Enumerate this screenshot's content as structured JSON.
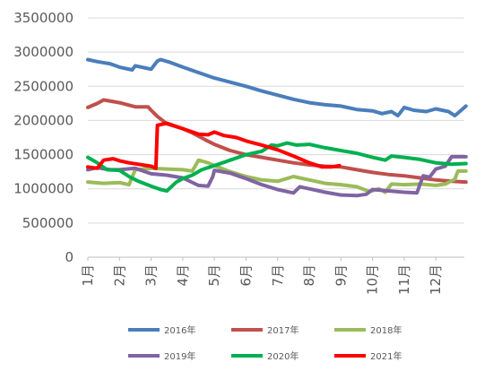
{
  "chart_data": {
    "type": "line",
    "title": "",
    "xlabel": "",
    "ylabel": "",
    "ylim": [
      0,
      3500000
    ],
    "yticks": [
      0,
      500000,
      1000000,
      1500000,
      2000000,
      2500000,
      3000000,
      3500000
    ],
    "ytick_labels": [
      "0",
      "500000",
      "1000000",
      "1500000",
      "2000000",
      "2500000",
      "3000000",
      "3500000"
    ],
    "xlim": [
      1,
      12.9
    ],
    "xtick_labels": [
      "1月",
      "2月",
      "3月",
      "4月",
      "5月",
      "6月",
      "7月",
      "8月",
      "9月",
      "10月",
      "11月",
      "12月"
    ],
    "grid": "horizontal",
    "legend_position": "bottom",
    "series": [
      {
        "name": "2016年",
        "color": "#4a7ebb",
        "points": [
          [
            1.0,
            2890000
          ],
          [
            1.3,
            2860000
          ],
          [
            1.7,
            2830000
          ],
          [
            2.0,
            2780000
          ],
          [
            2.4,
            2740000
          ],
          [
            2.5,
            2800000
          ],
          [
            2.9,
            2760000
          ],
          [
            3.0,
            2750000
          ],
          [
            3.2,
            2870000
          ],
          [
            3.3,
            2890000
          ],
          [
            3.6,
            2850000
          ],
          [
            4.0,
            2780000
          ],
          [
            4.5,
            2700000
          ],
          [
            5.0,
            2620000
          ],
          [
            5.5,
            2560000
          ],
          [
            6.0,
            2500000
          ],
          [
            6.5,
            2430000
          ],
          [
            7.0,
            2370000
          ],
          [
            7.5,
            2310000
          ],
          [
            8.0,
            2260000
          ],
          [
            8.5,
            2230000
          ],
          [
            9.0,
            2210000
          ],
          [
            9.5,
            2160000
          ],
          [
            10.0,
            2140000
          ],
          [
            10.3,
            2100000
          ],
          [
            10.6,
            2130000
          ],
          [
            10.8,
            2070000
          ],
          [
            11.0,
            2190000
          ],
          [
            11.3,
            2150000
          ],
          [
            11.7,
            2130000
          ],
          [
            12.0,
            2170000
          ],
          [
            12.4,
            2130000
          ],
          [
            12.6,
            2070000
          ],
          [
            12.8,
            2150000
          ],
          [
            12.95,
            2210000
          ]
        ]
      },
      {
        "name": "2017年",
        "color": "#c0504d",
        "points": [
          [
            1.0,
            2190000
          ],
          [
            1.3,
            2250000
          ],
          [
            1.5,
            2300000
          ],
          [
            2.0,
            2260000
          ],
          [
            2.5,
            2200000
          ],
          [
            2.9,
            2200000
          ],
          [
            3.0,
            2150000
          ],
          [
            3.2,
            2060000
          ],
          [
            3.5,
            1950000
          ],
          [
            4.0,
            1880000
          ],
          [
            4.3,
            1820000
          ],
          [
            4.7,
            1720000
          ],
          [
            5.0,
            1650000
          ],
          [
            5.5,
            1560000
          ],
          [
            6.0,
            1500000
          ],
          [
            6.5,
            1460000
          ],
          [
            7.0,
            1420000
          ],
          [
            7.5,
            1380000
          ],
          [
            8.0,
            1350000
          ],
          [
            8.5,
            1330000
          ],
          [
            9.0,
            1320000
          ],
          [
            9.5,
            1280000
          ],
          [
            10.0,
            1240000
          ],
          [
            10.5,
            1210000
          ],
          [
            11.0,
            1190000
          ],
          [
            11.5,
            1160000
          ],
          [
            12.0,
            1130000
          ],
          [
            12.5,
            1110000
          ],
          [
            12.95,
            1100000
          ]
        ]
      },
      {
        "name": "2018年",
        "color": "#9bbb59",
        "points": [
          [
            1.0,
            1100000
          ],
          [
            1.5,
            1080000
          ],
          [
            2.0,
            1090000
          ],
          [
            2.3,
            1060000
          ],
          [
            2.5,
            1280000
          ],
          [
            3.0,
            1300000
          ],
          [
            3.5,
            1290000
          ],
          [
            4.0,
            1280000
          ],
          [
            4.3,
            1260000
          ],
          [
            4.5,
            1420000
          ],
          [
            4.8,
            1380000
          ],
          [
            5.0,
            1340000
          ],
          [
            5.5,
            1250000
          ],
          [
            6.0,
            1180000
          ],
          [
            6.5,
            1130000
          ],
          [
            7.0,
            1110000
          ],
          [
            7.5,
            1180000
          ],
          [
            8.0,
            1130000
          ],
          [
            8.5,
            1080000
          ],
          [
            9.0,
            1060000
          ],
          [
            9.5,
            1030000
          ],
          [
            9.9,
            960000
          ],
          [
            10.2,
            1000000
          ],
          [
            10.4,
            950000
          ],
          [
            10.6,
            1070000
          ],
          [
            11.0,
            1060000
          ],
          [
            11.5,
            1070000
          ],
          [
            12.0,
            1050000
          ],
          [
            12.3,
            1070000
          ],
          [
            12.6,
            1140000
          ],
          [
            12.7,
            1260000
          ],
          [
            12.95,
            1260000
          ]
        ]
      },
      {
        "name": "2019年",
        "color": "#8064a2",
        "points": [
          [
            1.0,
            1280000
          ],
          [
            1.3,
            1310000
          ],
          [
            1.7,
            1280000
          ],
          [
            2.0,
            1280000
          ],
          [
            2.5,
            1300000
          ],
          [
            3.0,
            1220000
          ],
          [
            3.5,
            1200000
          ],
          [
            4.0,
            1160000
          ],
          [
            4.5,
            1050000
          ],
          [
            4.8,
            1040000
          ],
          [
            4.95,
            1180000
          ],
          [
            5.0,
            1270000
          ],
          [
            5.5,
            1230000
          ],
          [
            6.0,
            1150000
          ],
          [
            6.5,
            1060000
          ],
          [
            7.0,
            990000
          ],
          [
            7.3,
            960000
          ],
          [
            7.5,
            940000
          ],
          [
            7.7,
            1030000
          ],
          [
            8.0,
            1000000
          ],
          [
            8.5,
            950000
          ],
          [
            9.0,
            910000
          ],
          [
            9.5,
            900000
          ],
          [
            9.8,
            920000
          ],
          [
            10.0,
            990000
          ],
          [
            10.5,
            970000
          ],
          [
            11.0,
            950000
          ],
          [
            11.4,
            940000
          ],
          [
            11.6,
            1190000
          ],
          [
            11.8,
            1170000
          ],
          [
            12.0,
            1290000
          ],
          [
            12.3,
            1330000
          ],
          [
            12.5,
            1470000
          ],
          [
            12.95,
            1470000
          ]
        ]
      },
      {
        "name": "2020年",
        "color": "#00b050",
        "points": [
          [
            1.0,
            1460000
          ],
          [
            1.3,
            1380000
          ],
          [
            1.6,
            1280000
          ],
          [
            2.0,
            1270000
          ],
          [
            2.3,
            1180000
          ],
          [
            2.6,
            1110000
          ],
          [
            3.0,
            1040000
          ],
          [
            3.3,
            990000
          ],
          [
            3.5,
            970000
          ],
          [
            3.8,
            1100000
          ],
          [
            4.0,
            1150000
          ],
          [
            4.3,
            1200000
          ],
          [
            4.6,
            1280000
          ],
          [
            5.0,
            1340000
          ],
          [
            5.5,
            1420000
          ],
          [
            6.0,
            1500000
          ],
          [
            6.5,
            1550000
          ],
          [
            6.8,
            1640000
          ],
          [
            7.0,
            1630000
          ],
          [
            7.3,
            1670000
          ],
          [
            7.6,
            1640000
          ],
          [
            8.0,
            1650000
          ],
          [
            8.5,
            1600000
          ],
          [
            9.0,
            1560000
          ],
          [
            9.5,
            1520000
          ],
          [
            10.0,
            1460000
          ],
          [
            10.4,
            1420000
          ],
          [
            10.6,
            1480000
          ],
          [
            11.0,
            1460000
          ],
          [
            11.5,
            1430000
          ],
          [
            12.0,
            1380000
          ],
          [
            12.5,
            1360000
          ],
          [
            12.95,
            1370000
          ]
        ]
      },
      {
        "name": "2021年",
        "color": "#ff0000",
        "points": [
          [
            1.0,
            1320000
          ],
          [
            1.3,
            1300000
          ],
          [
            1.5,
            1420000
          ],
          [
            1.8,
            1440000
          ],
          [
            2.0,
            1410000
          ],
          [
            2.3,
            1380000
          ],
          [
            2.6,
            1360000
          ],
          [
            3.0,
            1330000
          ],
          [
            3.15,
            1300000
          ],
          [
            3.2,
            1930000
          ],
          [
            3.5,
            1960000
          ],
          [
            4.0,
            1880000
          ],
          [
            4.5,
            1800000
          ],
          [
            4.8,
            1790000
          ],
          [
            5.0,
            1830000
          ],
          [
            5.3,
            1780000
          ],
          [
            5.7,
            1750000
          ],
          [
            6.0,
            1700000
          ],
          [
            6.5,
            1640000
          ],
          [
            7.0,
            1570000
          ],
          [
            7.5,
            1480000
          ],
          [
            8.0,
            1380000
          ],
          [
            8.4,
            1320000
          ],
          [
            8.7,
            1320000
          ],
          [
            8.95,
            1340000
          ]
        ]
      }
    ]
  }
}
